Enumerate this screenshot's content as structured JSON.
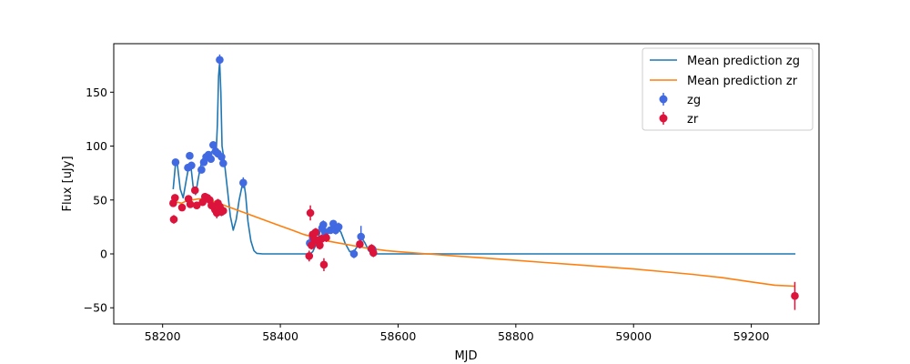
{
  "chart_data": {
    "type": "scatter",
    "xlabel": "MJD",
    "ylabel": "Flux [uJy]",
    "xlim": [
      58117,
      59315
    ],
    "ylim": [
      -65,
      195
    ],
    "x_ticks": [
      58200,
      58400,
      58600,
      58800,
      59000,
      59200
    ],
    "y_ticks": [
      -50,
      0,
      50,
      100,
      150
    ],
    "grid": false,
    "legend_placement": "top-right",
    "legend": [
      {
        "label": "Mean prediction zg",
        "kind": "line",
        "color": "#1f77b4"
      },
      {
        "label": "Mean prediction zr",
        "kind": "line",
        "color": "#ff7f0e"
      },
      {
        "label": "zg",
        "kind": "errorbar",
        "color": "#4169e1"
      },
      {
        "label": "zr",
        "kind": "errorbar",
        "color": "#dc143c"
      }
    ],
    "lines": [
      {
        "name": "Mean prediction zg",
        "color": "#1f77b4",
        "x": [
          58218,
          58222,
          58225,
          58230,
          58235,
          58240,
          58244,
          58248,
          58252,
          58256,
          58260,
          58264,
          58268,
          58272,
          58276,
          58280,
          58284,
          58288,
          58291,
          58293,
          58295,
          58297,
          58299,
          58301,
          58305,
          58310,
          58315,
          58320,
          58325,
          58330,
          58335,
          58338,
          58341,
          58345,
          58350,
          58355,
          58360,
          58370,
          58380,
          58400,
          58420,
          58440,
          58450,
          58455,
          58460,
          58466,
          58470,
          58474,
          58478,
          58482,
          58486,
          58490,
          58494,
          58498,
          58503,
          58510,
          58518,
          58526,
          58532,
          58538,
          58544,
          58550,
          58556,
          58562,
          58570,
          58580,
          58600,
          58700,
          58800,
          58900,
          59000,
          59100,
          59200,
          59275
        ],
        "y": [
          60,
          84,
          83,
          60,
          52,
          68,
          80,
          82,
          62,
          55,
          68,
          80,
          88,
          90,
          92,
          93,
          95,
          96,
          95,
          120,
          165,
          178,
          150,
          100,
          85,
          60,
          35,
          22,
          32,
          50,
          63,
          66,
          55,
          30,
          12,
          3,
          0.5,
          0,
          0,
          0,
          0,
          0,
          0,
          2,
          8,
          18,
          25,
          26,
          22,
          20,
          22,
          28,
          27,
          24,
          20,
          10,
          2,
          3,
          8,
          15,
          10,
          3,
          0,
          0,
          0,
          0,
          0,
          0,
          0,
          0,
          0,
          0,
          0,
          0
        ]
      },
      {
        "name": "Mean prediction zr",
        "color": "#ff7f0e",
        "x": [
          58218,
          58225,
          58232,
          58240,
          58250,
          58260,
          58270,
          58280,
          58290,
          58300,
          58320,
          58340,
          58360,
          58380,
          58400,
          58420,
          58440,
          58460,
          58480,
          58500,
          58520,
          58540,
          58560,
          58580,
          58600,
          58650,
          58700,
          58750,
          58800,
          58850,
          58900,
          58950,
          59000,
          59050,
          59100,
          59150,
          59200,
          59240,
          59275
        ],
        "y": [
          46,
          48,
          47,
          49,
          50,
          51,
          51,
          50,
          48,
          46,
          42,
          38,
          34,
          30,
          26,
          22,
          18,
          15,
          12,
          10,
          8,
          6,
          4.5,
          3,
          2,
          0,
          -2,
          -4,
          -6,
          -8,
          -10,
          -12,
          -14,
          -16.5,
          -19,
          -22,
          -26,
          -29,
          -30
        ]
      }
    ],
    "series": [
      {
        "name": "zg",
        "color": "#4169e1",
        "points": [
          {
            "x": 58222,
            "y": 85,
            "err": 2
          },
          {
            "x": 58243,
            "y": 80,
            "err": 3
          },
          {
            "x": 58246,
            "y": 91,
            "err": 3
          },
          {
            "x": 58249,
            "y": 82,
            "err": 3
          },
          {
            "x": 58266,
            "y": 78,
            "err": 3
          },
          {
            "x": 58270,
            "y": 85,
            "err": 3
          },
          {
            "x": 58274,
            "y": 90,
            "err": 3
          },
          {
            "x": 58278,
            "y": 92,
            "err": 3
          },
          {
            "x": 58282,
            "y": 88,
            "err": 3
          },
          {
            "x": 58286,
            "y": 101,
            "err": 3
          },
          {
            "x": 58290,
            "y": 95,
            "err": 3
          },
          {
            "x": 58294,
            "y": 93,
            "err": 3
          },
          {
            "x": 58297,
            "y": 180,
            "err": 5
          },
          {
            "x": 58300,
            "y": 90,
            "err": 3
          },
          {
            "x": 58303,
            "y": 84,
            "err": 3
          },
          {
            "x": 58337,
            "y": 66,
            "err": 5
          },
          {
            "x": 58450,
            "y": 10,
            "err": 3
          },
          {
            "x": 58455,
            "y": 15,
            "err": 4
          },
          {
            "x": 58460,
            "y": 20,
            "err": 3
          },
          {
            "x": 58465,
            "y": 12,
            "err": 4
          },
          {
            "x": 58471,
            "y": 24,
            "err": 3
          },
          {
            "x": 58473,
            "y": 27,
            "err": 4
          },
          {
            "x": 58476,
            "y": 20,
            "err": 8
          },
          {
            "x": 58485,
            "y": 22,
            "err": 3
          },
          {
            "x": 58490,
            "y": 28,
            "err": 3
          },
          {
            "x": 58494,
            "y": 22,
            "err": 4
          },
          {
            "x": 58499,
            "y": 25,
            "err": 4
          },
          {
            "x": 58525,
            "y": 0,
            "err": 4
          },
          {
            "x": 58537,
            "y": 16,
            "err": 10
          },
          {
            "x": 58557,
            "y": 4,
            "err": 4
          }
        ]
      },
      {
        "name": "zr",
        "color": "#dc143c",
        "points": [
          {
            "x": 58218,
            "y": 47,
            "err": 3
          },
          {
            "x": 58219,
            "y": 32,
            "err": 4
          },
          {
            "x": 58221,
            "y": 52,
            "err": 3
          },
          {
            "x": 58233,
            "y": 43,
            "err": 3
          },
          {
            "x": 58244,
            "y": 51,
            "err": 3
          },
          {
            "x": 58247,
            "y": 46,
            "err": 3
          },
          {
            "x": 58255,
            "y": 59,
            "err": 3
          },
          {
            "x": 58258,
            "y": 45,
            "err": 3
          },
          {
            "x": 58268,
            "y": 48,
            "err": 3
          },
          {
            "x": 58272,
            "y": 53,
            "err": 3
          },
          {
            "x": 58276,
            "y": 52,
            "err": 3
          },
          {
            "x": 58280,
            "y": 50,
            "err": 3
          },
          {
            "x": 58283,
            "y": 45,
            "err": 3
          },
          {
            "x": 58286,
            "y": 44,
            "err": 3
          },
          {
            "x": 58289,
            "y": 41,
            "err": 4
          },
          {
            "x": 58292,
            "y": 38,
            "err": 5
          },
          {
            "x": 58294,
            "y": 47,
            "err": 4
          },
          {
            "x": 58297,
            "y": 44,
            "err": 4
          },
          {
            "x": 58300,
            "y": 39,
            "err": 4
          },
          {
            "x": 58303,
            "y": 40,
            "err": 4
          },
          {
            "x": 58449,
            "y": -2,
            "err": 5
          },
          {
            "x": 58451,
            "y": 38,
            "err": 7
          },
          {
            "x": 58453,
            "y": 8,
            "err": 4
          },
          {
            "x": 58455,
            "y": 18,
            "err": 4
          },
          {
            "x": 58457,
            "y": 14,
            "err": 4
          },
          {
            "x": 58460,
            "y": 20,
            "err": 4
          },
          {
            "x": 58463,
            "y": 12,
            "err": 4
          },
          {
            "x": 58467,
            "y": 8,
            "err": 4
          },
          {
            "x": 58470,
            "y": 14,
            "err": 4
          },
          {
            "x": 58474,
            "y": -10,
            "err": 6
          },
          {
            "x": 58478,
            "y": 15,
            "err": 4
          },
          {
            "x": 58535,
            "y": 9,
            "err": 4
          },
          {
            "x": 58555,
            "y": 5,
            "err": 4
          },
          {
            "x": 58558,
            "y": 1,
            "err": 4
          },
          {
            "x": 59274,
            "y": -39,
            "err": 13
          }
        ]
      }
    ]
  }
}
